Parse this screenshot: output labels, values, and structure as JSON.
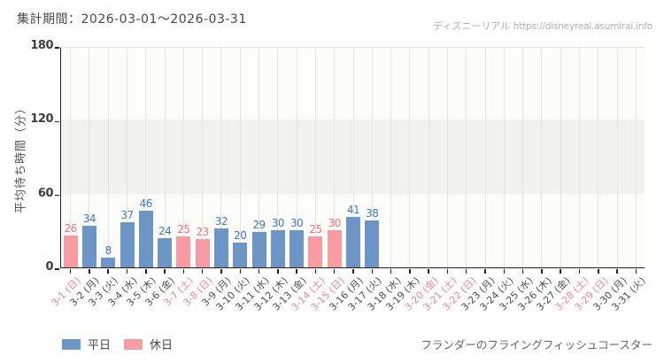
{
  "header": {
    "period_label": "集計期間：2026-03-01～2026-03-31"
  },
  "watermark": {
    "brand": "ディズニーリアル",
    "url": "https://disneyreal.asumirai.info"
  },
  "chart_data": {
    "type": "bar",
    "title": "",
    "xlabel": "",
    "ylabel": "平均待ち時間（分）",
    "ylim": [
      0,
      180
    ],
    "yticks": [
      0,
      60,
      120,
      180
    ],
    "band": {
      "from": 60,
      "to": 120
    },
    "grid": "vertical",
    "legend_position": "bottom-left",
    "categories": [
      "3-1 (日)",
      "3-2 (月)",
      "3-3 (火)",
      "3-4 (水)",
      "3-5 (木)",
      "3-6 (金)",
      "3-7 (土)",
      "3-8 (日)",
      "3-9 (月)",
      "3-10 (火)",
      "3-11 (水)",
      "3-12 (木)",
      "3-13 (金)",
      "3-14 (土)",
      "3-15 (日)",
      "3-16 (月)",
      "3-17 (火)",
      "3-18 (水)",
      "3-19 (木)",
      "3-20 (金)",
      "3-21 (土)",
      "3-22 (日)",
      "3-23 (月)",
      "3-24 (火)",
      "3-25 (水)",
      "3-26 (木)",
      "3-27 (金)",
      "3-28 (土)",
      "3-29 (日)",
      "3-30 (月)",
      "3-31 (火)"
    ],
    "day_types": [
      "holiday",
      "weekday",
      "weekday",
      "weekday",
      "weekday",
      "weekday",
      "holiday",
      "holiday",
      "weekday",
      "weekday",
      "weekday",
      "weekday",
      "weekday",
      "holiday",
      "holiday",
      "weekday",
      "weekday",
      "weekday",
      "weekday",
      "holiday",
      "holiday",
      "holiday",
      "weekday",
      "weekday",
      "weekday",
      "weekday",
      "weekday",
      "holiday",
      "holiday",
      "weekday",
      "weekday"
    ],
    "values": [
      26,
      34,
      8,
      37,
      46,
      24,
      25,
      23,
      32,
      20,
      29,
      30,
      30,
      25,
      30,
      41,
      38,
      null,
      null,
      null,
      null,
      null,
      null,
      null,
      null,
      null,
      null,
      null,
      null,
      null,
      null
    ],
    "legend": [
      {
        "label": "平日",
        "type": "weekday"
      },
      {
        "label": "休日",
        "type": "holiday"
      }
    ],
    "colors": {
      "weekday_bar": "#6d95c5",
      "holiday_bar": "#f99ba3",
      "weekday_value_label": "#4678b9",
      "holiday_value_label": "#f3707d",
      "weekday_axis_label": "#4e4e4e",
      "holiday_axis_label": "#ee868c"
    },
    "attraction": "フランダーのフライングフィッシュコースター"
  }
}
